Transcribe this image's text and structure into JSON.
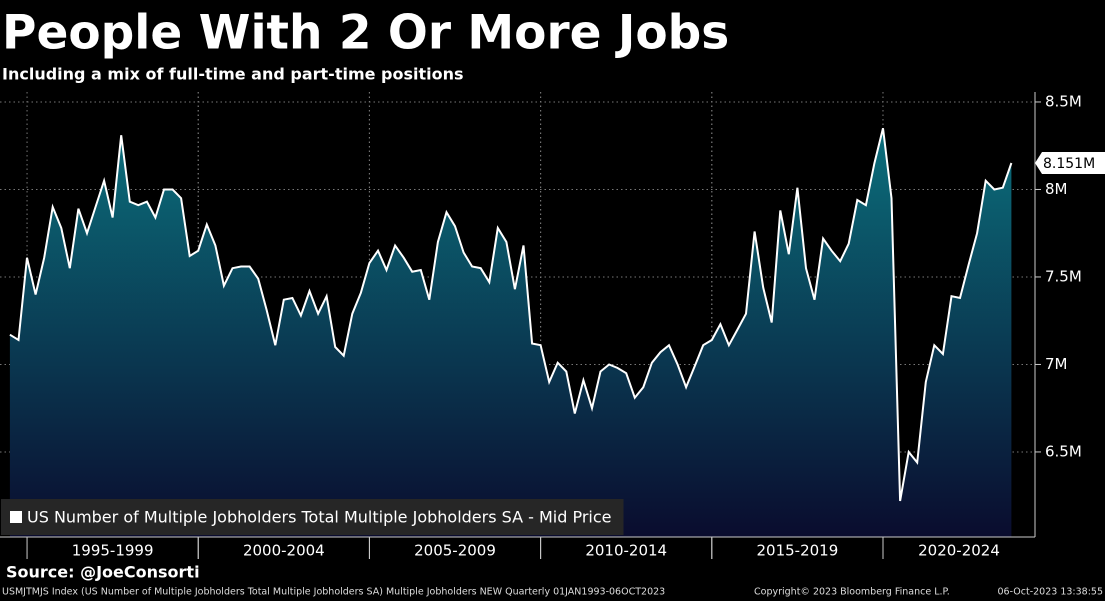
{
  "chart_data": {
    "type": "area",
    "title": "People With 2 Or More Jobs",
    "subtitle": "Including a mix of full-time and part-time positions",
    "source": "Source: @JoeConsorti",
    "footer": [
      "USMJTMJS Index (US Number of Multiple Jobholders Total Multiple Jobholders SA) Multiple Jobholders NEW  Quarterly 01JAN1993-06OCT2023",
      "Copyright© 2023 Bloomberg Finance L.P.",
      "06-Oct-2023 13:38:55"
    ],
    "x": [
      1994.5,
      1994.75,
      1995,
      1995.25,
      1995.5,
      1995.75,
      1996,
      1996.25,
      1996.5,
      1996.75,
      1997,
      1997.25,
      1997.5,
      1997.75,
      1998,
      1998.25,
      1998.5,
      1998.75,
      1999,
      1999.25,
      1999.5,
      1999.75,
      2000,
      2000.25,
      2000.5,
      2000.75,
      2001,
      2001.25,
      2001.5,
      2001.75,
      2002,
      2002.25,
      2002.5,
      2002.75,
      2003,
      2003.25,
      2003.5,
      2003.75,
      2004,
      2004.25,
      2004.5,
      2004.75,
      2005,
      2005.25,
      2005.5,
      2005.75,
      2006,
      2006.25,
      2006.5,
      2006.75,
      2007,
      2007.25,
      2007.5,
      2007.75,
      2008,
      2008.25,
      2008.5,
      2008.75,
      2009,
      2009.25,
      2009.5,
      2009.75,
      2010,
      2010.25,
      2010.5,
      2010.75,
      2011,
      2011.25,
      2011.5,
      2011.75,
      2012,
      2012.25,
      2012.5,
      2012.75,
      2013,
      2013.25,
      2013.5,
      2013.75,
      2014,
      2014.25,
      2014.5,
      2014.75,
      2015,
      2015.25,
      2015.5,
      2015.75,
      2016,
      2016.25,
      2016.5,
      2016.75,
      2017,
      2017.25,
      2017.5,
      2017.75,
      2018,
      2018.25,
      2018.5,
      2018.75,
      2019,
      2019.25,
      2019.5,
      2019.75,
      2020,
      2020.25,
      2020.5,
      2020.75,
      2021,
      2021.25,
      2021.5,
      2021.75,
      2022,
      2022.25,
      2022.5,
      2022.75,
      2023,
      2023.25,
      2023.5,
      2023.75
    ],
    "series": [
      {
        "name": "US Number of Multiple Jobholders Total Multiple Jobholders SA - Mid Price",
        "color": "#ffffff",
        "values": [
          7.17,
          7.14,
          7.61,
          7.4,
          7.61,
          7.9,
          7.78,
          7.55,
          7.89,
          7.75,
          7.9,
          8.05,
          7.84,
          8.31,
          7.93,
          7.91,
          7.93,
          7.84,
          8.0,
          8.0,
          7.95,
          7.62,
          7.65,
          7.8,
          7.68,
          7.45,
          7.55,
          7.56,
          7.56,
          7.49,
          7.31,
          7.11,
          7.37,
          7.38,
          7.28,
          7.42,
          7.29,
          7.39,
          7.1,
          7.05,
          7.29,
          7.41,
          7.58,
          7.65,
          7.54,
          7.68,
          7.61,
          7.53,
          7.54,
          7.37,
          7.7,
          7.87,
          7.79,
          7.64,
          7.56,
          7.55,
          7.47,
          7.78,
          7.7,
          7.43,
          7.68,
          7.12,
          7.11,
          6.9,
          7.01,
          6.96,
          6.72,
          6.91,
          6.75,
          6.96,
          7.0,
          6.98,
          6.95,
          6.81,
          6.87,
          7.01,
          7.07,
          7.11,
          7.0,
          6.87,
          6.99,
          7.11,
          7.14,
          7.23,
          7.11,
          7.2,
          7.29,
          7.76,
          7.44,
          7.24,
          7.88,
          7.63,
          8.01,
          7.55,
          7.37,
          7.72,
          7.65,
          7.59,
          7.69,
          7.94,
          7.91,
          8.15,
          8.35,
          7.95,
          6.22,
          6.5,
          6.44,
          6.9,
          7.11,
          7.06,
          7.39,
          7.38,
          7.57,
          7.75,
          8.05,
          8.0,
          8.01,
          8.151
        ],
        "last_label": "8.151M"
      }
    ],
    "area_colors": [
      "#0b6f7c",
      "#0a0c2e"
    ],
    "xlim": [
      1994.21,
      2024.44
    ],
    "x_periods": [
      {
        "label": "1995-1999",
        "start": 1995,
        "end": 2000
      },
      {
        "label": "2000-2004",
        "start": 2000,
        "end": 2005
      },
      {
        "label": "2005-2009",
        "start": 2005,
        "end": 2010
      },
      {
        "label": "2010-2014",
        "start": 2010,
        "end": 2015
      },
      {
        "label": "2015-2019",
        "start": 2015,
        "end": 2020
      },
      {
        "label": "2020-2024",
        "start": 2020,
        "end": 2025
      }
    ],
    "ylim": [
      6.014,
      8.557
    ],
    "yticks": [
      {
        "value": 6.5,
        "label": "6.5M"
      },
      {
        "value": 7,
        "label": "7M"
      },
      {
        "value": 7.5,
        "label": "7.5M"
      },
      {
        "value": 8,
        "label": "8M"
      },
      {
        "value": 8.5,
        "label": "8.5M"
      }
    ],
    "grid": true,
    "legend": "bottom-left"
  }
}
